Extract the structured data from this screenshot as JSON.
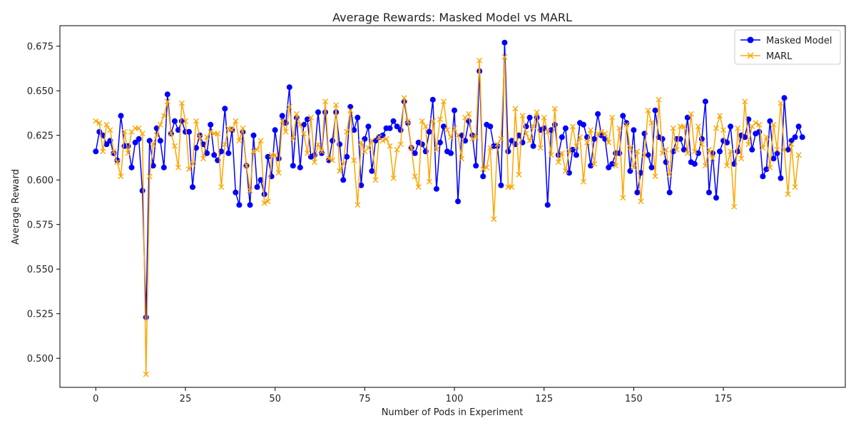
{
  "chart_data": {
    "type": "line",
    "title": "Average Rewards: Masked Model vs MARL",
    "xlabel": "Number of Pods in Experiment",
    "ylabel": "Average Reward",
    "xlim": [
      -10,
      209
    ],
    "ylim": [
      0.4837,
      0.6865
    ],
    "xticks": [
      0,
      25,
      50,
      75,
      100,
      125,
      150,
      175
    ],
    "yticks": [
      0.5,
      0.525,
      0.55,
      0.575,
      0.6,
      0.625,
      0.65,
      0.675
    ],
    "ytick_labels": [
      "0.500",
      "0.525",
      "0.550",
      "0.575",
      "0.600",
      "0.625",
      "0.650",
      "0.675"
    ],
    "grid": false,
    "legend_position": "top-right",
    "series": [
      {
        "name": "Masked Model",
        "color": "#0000ff",
        "marker": "circle",
        "x_start": 0,
        "values": [
          0.616,
          0.627,
          0.625,
          0.62,
          0.622,
          0.615,
          0.611,
          0.636,
          0.619,
          0.619,
          0.607,
          0.621,
          0.623,
          0.594,
          0.523,
          0.622,
          0.608,
          0.629,
          0.622,
          0.607,
          0.648,
          0.626,
          0.633,
          0.628,
          0.633,
          0.627,
          0.627,
          0.596,
          0.618,
          0.625,
          0.62,
          0.615,
          0.631,
          0.614,
          0.611,
          0.616,
          0.64,
          0.615,
          0.628,
          0.593,
          0.586,
          0.627,
          0.608,
          0.586,
          0.625,
          0.596,
          0.6,
          0.592,
          0.613,
          0.602,
          0.628,
          0.612,
          0.636,
          0.632,
          0.652,
          0.608,
          0.635,
          0.607,
          0.631,
          0.634,
          0.613,
          0.614,
          0.638,
          0.615,
          0.638,
          0.611,
          0.622,
          0.638,
          0.62,
          0.6,
          0.613,
          0.641,
          0.628,
          0.635,
          0.597,
          0.623,
          0.63,
          0.605,
          0.622,
          0.624,
          0.625,
          0.629,
          0.629,
          0.633,
          0.63,
          0.628,
          0.644,
          0.632,
          0.618,
          0.615,
          0.621,
          0.62,
          0.616,
          0.627,
          0.645,
          0.595,
          0.621,
          0.63,
          0.616,
          0.615,
          0.639,
          0.588,
          0.625,
          0.622,
          0.633,
          0.625,
          0.608,
          0.661,
          0.602,
          0.631,
          0.63,
          0.619,
          0.619,
          0.597,
          0.677,
          0.616,
          0.622,
          0.62,
          0.625,
          0.621,
          0.63,
          0.635,
          0.619,
          0.635,
          0.628,
          0.629,
          0.586,
          0.628,
          0.631,
          0.614,
          0.624,
          0.629,
          0.604,
          0.617,
          0.614,
          0.632,
          0.631,
          0.624,
          0.608,
          0.623,
          0.637,
          0.625,
          0.623,
          0.607,
          0.609,
          0.615,
          0.615,
          0.636,
          0.632,
          0.605,
          0.628,
          0.593,
          0.604,
          0.626,
          0.614,
          0.607,
          0.639,
          0.624,
          0.623,
          0.61,
          0.593,
          0.616,
          0.623,
          0.623,
          0.617,
          0.635,
          0.61,
          0.609,
          0.615,
          0.623,
          0.644,
          0.593,
          0.615,
          0.59,
          0.616,
          0.622,
          0.621,
          0.63,
          0.609,
          0.616,
          0.625,
          0.624,
          0.634,
          0.617,
          0.626,
          0.627,
          0.602,
          0.606,
          0.633,
          0.612,
          0.615,
          0.601,
          0.646,
          0.617,
          0.622,
          0.624,
          0.63,
          0.624
        ]
      },
      {
        "name": "MARL",
        "color": "#ffa500",
        "marker": "x",
        "x_start": 0,
        "values": [
          0.633,
          0.632,
          0.616,
          0.631,
          0.628,
          0.616,
          0.61,
          0.602,
          0.627,
          0.615,
          0.627,
          0.629,
          0.629,
          0.626,
          0.491,
          0.602,
          0.62,
          0.625,
          0.631,
          0.636,
          0.644,
          0.626,
          0.619,
          0.607,
          0.643,
          0.633,
          0.606,
          0.609,
          0.633,
          0.624,
          0.612,
          0.624,
          0.627,
          0.626,
          0.626,
          0.596,
          0.62,
          0.629,
          0.628,
          0.633,
          0.622,
          0.629,
          0.608,
          0.594,
          0.616,
          0.617,
          0.622,
          0.587,
          0.588,
          0.614,
          0.614,
          0.604,
          0.633,
          0.627,
          0.641,
          0.623,
          0.637,
          0.631,
          0.626,
          0.615,
          0.635,
          0.61,
          0.62,
          0.616,
          0.644,
          0.612,
          0.611,
          0.642,
          0.605,
          0.609,
          0.627,
          0.639,
          0.611,
          0.586,
          0.621,
          0.616,
          0.618,
          0.622,
          0.6,
          0.624,
          0.622,
          0.623,
          0.619,
          0.601,
          0.617,
          0.62,
          0.646,
          0.633,
          0.618,
          0.602,
          0.596,
          0.633,
          0.63,
          0.599,
          0.633,
          0.617,
          0.634,
          0.644,
          0.628,
          0.624,
          0.629,
          0.625,
          0.612,
          0.635,
          0.637,
          0.623,
          0.624,
          0.667,
          0.606,
          0.607,
          0.618,
          0.578,
          0.62,
          0.623,
          0.669,
          0.596,
          0.596,
          0.64,
          0.603,
          0.636,
          0.626,
          0.622,
          0.63,
          0.638,
          0.618,
          0.635,
          0.627,
          0.614,
          0.64,
          0.61,
          0.615,
          0.605,
          0.616,
          0.63,
          0.619,
          0.624,
          0.599,
          0.621,
          0.628,
          0.609,
          0.626,
          0.627,
          0.626,
          0.621,
          0.635,
          0.608,
          0.629,
          0.59,
          0.631,
          0.618,
          0.607,
          0.616,
          0.588,
          0.614,
          0.639,
          0.632,
          0.602,
          0.645,
          0.615,
          0.617,
          0.603,
          0.629,
          0.617,
          0.63,
          0.63,
          0.615,
          0.637,
          0.616,
          0.63,
          0.62,
          0.608,
          0.617,
          0.612,
          0.629,
          0.636,
          0.628,
          0.608,
          0.616,
          0.585,
          0.629,
          0.612,
          0.644,
          0.62,
          0.63,
          0.632,
          0.631,
          0.618,
          0.624,
          0.607,
          0.631,
          0.617,
          0.643,
          0.617,
          0.592,
          0.62,
          0.596,
          0.614
        ]
      }
    ]
  }
}
